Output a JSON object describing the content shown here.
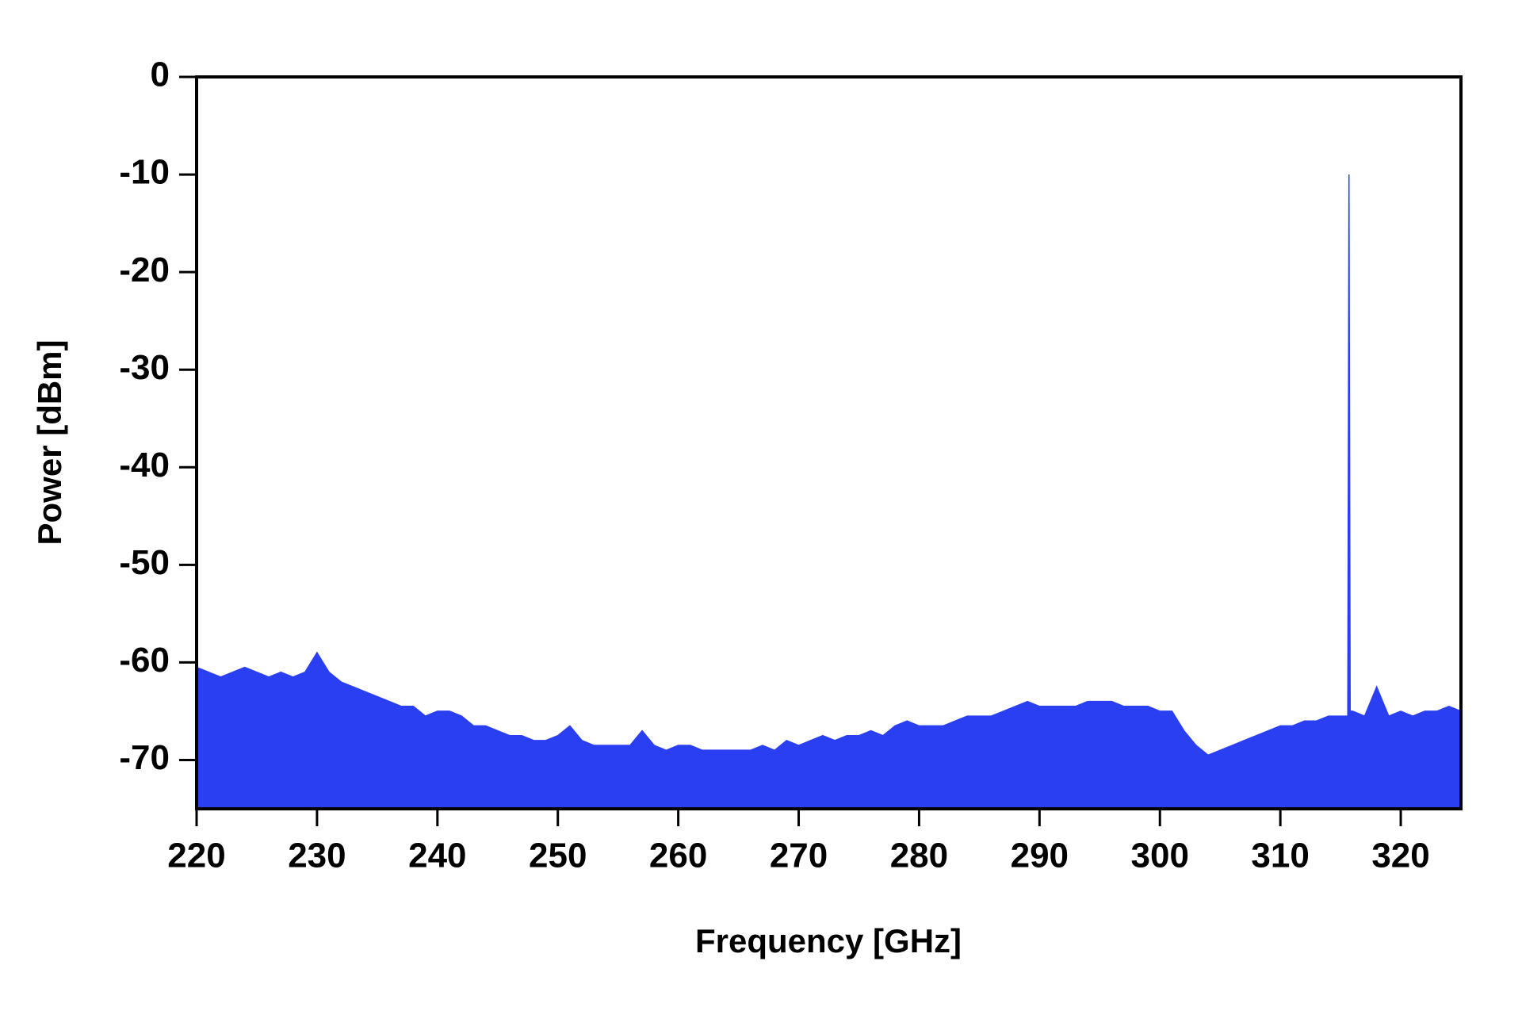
{
  "chart_data": {
    "type": "area",
    "x_label": "Frequency [GHz]",
    "y_label": "Power [dBm]",
    "color": "#2a3ff2",
    "xlim": [
      220,
      325
    ],
    "ylim": [
      -75,
      0
    ],
    "xticks": [
      220,
      230,
      240,
      250,
      260,
      270,
      280,
      290,
      300,
      310,
      320
    ],
    "yticks": [
      0,
      -10,
      -20,
      -30,
      -40,
      -50,
      -60,
      -70
    ],
    "x": [
      220,
      221,
      222,
      223,
      224,
      225,
      226,
      227,
      228,
      229,
      230,
      231,
      232,
      233,
      234,
      235,
      236,
      237,
      238,
      239,
      240,
      241,
      242,
      243,
      244,
      245,
      246,
      247,
      248,
      249,
      250,
      251,
      252,
      253,
      254,
      255,
      256,
      257,
      258,
      259,
      260,
      261,
      262,
      263,
      264,
      265,
      266,
      267,
      268,
      269,
      270,
      271,
      272,
      273,
      274,
      275,
      276,
      277,
      278,
      279,
      280,
      281,
      282,
      283,
      284,
      285,
      286,
      287,
      288,
      289,
      290,
      291,
      292,
      293,
      294,
      295,
      296,
      297,
      298,
      299,
      300,
      301,
      302,
      303,
      304,
      305,
      306,
      307,
      308,
      309,
      310,
      311,
      312,
      313,
      314,
      315,
      315.6,
      315.7,
      315.8,
      316,
      317,
      318,
      319,
      320,
      321,
      322,
      323,
      324,
      325
    ],
    "values": [
      -60.5,
      -61,
      -61.5,
      -61,
      -60.5,
      -61,
      -61.5,
      -61,
      -61.5,
      -61,
      -59,
      -61,
      -62,
      -62.5,
      -63,
      -63.5,
      -64,
      -64.5,
      -64.5,
      -65.5,
      -65,
      -65,
      -65.5,
      -66.5,
      -66.5,
      -67,
      -67.5,
      -67.5,
      -68,
      -68,
      -67.5,
      -66.5,
      -68,
      -68.5,
      -68.5,
      -68.5,
      -68.5,
      -67,
      -68.5,
      -69,
      -68.5,
      -68.5,
      -69,
      -69,
      -69,
      -69,
      -69,
      -68.5,
      -69,
      -68,
      -68.5,
      -68,
      -67.5,
      -68,
      -67.5,
      -67.5,
      -67,
      -67.5,
      -66.5,
      -66,
      -66.5,
      -66.5,
      -66.5,
      -66,
      -65.5,
      -65.5,
      -65.5,
      -65,
      -64.5,
      -64,
      -64.5,
      -64.5,
      -64.5,
      -64.5,
      -64,
      -64,
      -64,
      -64.5,
      -64.5,
      -64.5,
      -65,
      -65,
      -67,
      -68.5,
      -69.5,
      -69,
      -68.5,
      -68,
      -67.5,
      -67,
      -66.5,
      -66.5,
      -66,
      -66,
      -65.5,
      -65.5,
      -65.5,
      -10,
      -65,
      -65,
      -65.5,
      -62.5,
      -65.5,
      -65,
      -65.5,
      -65,
      -65,
      -64.5,
      -65
    ]
  }
}
